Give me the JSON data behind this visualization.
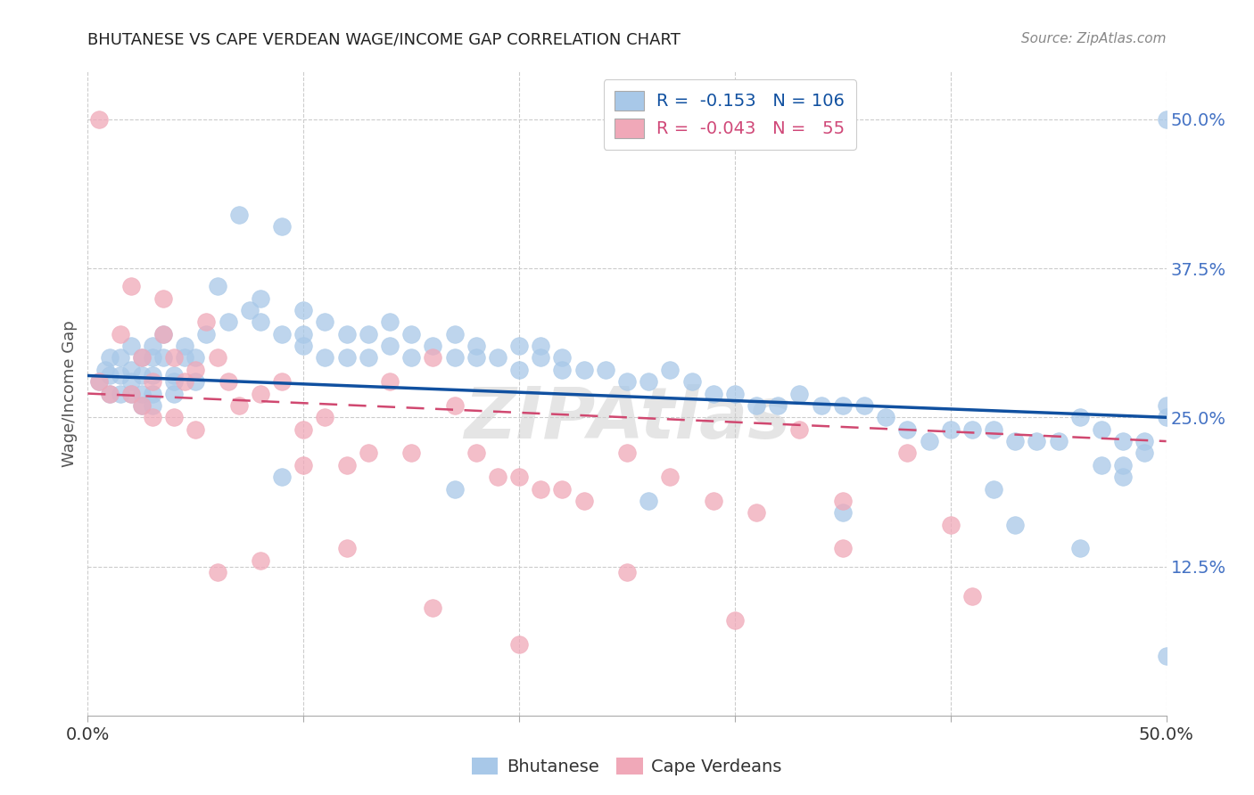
{
  "title": "BHUTANESE VS CAPE VERDEAN WAGE/INCOME GAP CORRELATION CHART",
  "source": "Source: ZipAtlas.com",
  "ylabel": "Wage/Income Gap",
  "xlim": [
    0.0,
    0.5
  ],
  "ylim": [
    0.0,
    0.54
  ],
  "ytick_vals": [
    0.125,
    0.25,
    0.375,
    0.5
  ],
  "ytick_labels": [
    "12.5%",
    "25.0%",
    "37.5%",
    "50.0%"
  ],
  "xtick_vals": [
    0.0,
    0.1,
    0.2,
    0.3,
    0.4,
    0.5
  ],
  "xtick_labels_show": [
    "0.0%",
    "",
    "",
    "",
    "",
    "50.0%"
  ],
  "blue_color": "#a8c8e8",
  "pink_color": "#f0a8b8",
  "line_blue": "#1050a0",
  "line_pink": "#d04870",
  "watermark": "ZIPAtlas",
  "bhu_line_start_y": 0.285,
  "bhu_line_end_y": 0.25,
  "cape_line_start_y": 0.27,
  "cape_line_end_y": 0.23,
  "bhutanese_x": [
    0.005,
    0.008,
    0.01,
    0.01,
    0.01,
    0.015,
    0.015,
    0.015,
    0.02,
    0.02,
    0.02,
    0.02,
    0.025,
    0.025,
    0.025,
    0.025,
    0.03,
    0.03,
    0.03,
    0.03,
    0.03,
    0.035,
    0.035,
    0.04,
    0.04,
    0.04,
    0.045,
    0.045,
    0.05,
    0.05,
    0.055,
    0.06,
    0.065,
    0.07,
    0.075,
    0.08,
    0.08,
    0.09,
    0.09,
    0.1,
    0.1,
    0.1,
    0.11,
    0.11,
    0.12,
    0.12,
    0.13,
    0.13,
    0.14,
    0.14,
    0.15,
    0.15,
    0.16,
    0.17,
    0.17,
    0.18,
    0.18,
    0.19,
    0.2,
    0.2,
    0.21,
    0.21,
    0.22,
    0.22,
    0.23,
    0.24,
    0.25,
    0.26,
    0.27,
    0.28,
    0.29,
    0.3,
    0.31,
    0.32,
    0.33,
    0.34,
    0.35,
    0.36,
    0.37,
    0.38,
    0.39,
    0.4,
    0.41,
    0.42,
    0.43,
    0.44,
    0.45,
    0.46,
    0.47,
    0.48,
    0.49,
    0.5,
    0.5,
    0.09,
    0.17,
    0.26,
    0.35,
    0.43,
    0.48,
    0.5,
    0.42,
    0.46,
    0.47,
    0.48,
    0.49,
    0.5
  ],
  "bhutanese_y": [
    0.28,
    0.29,
    0.3,
    0.285,
    0.27,
    0.3,
    0.27,
    0.285,
    0.29,
    0.31,
    0.28,
    0.27,
    0.3,
    0.285,
    0.27,
    0.26,
    0.31,
    0.3,
    0.285,
    0.27,
    0.26,
    0.32,
    0.3,
    0.285,
    0.28,
    0.27,
    0.31,
    0.3,
    0.3,
    0.28,
    0.32,
    0.36,
    0.33,
    0.42,
    0.34,
    0.35,
    0.33,
    0.41,
    0.32,
    0.34,
    0.32,
    0.31,
    0.33,
    0.3,
    0.32,
    0.3,
    0.32,
    0.3,
    0.33,
    0.31,
    0.32,
    0.3,
    0.31,
    0.32,
    0.3,
    0.31,
    0.3,
    0.3,
    0.31,
    0.29,
    0.31,
    0.3,
    0.3,
    0.29,
    0.29,
    0.29,
    0.28,
    0.28,
    0.29,
    0.28,
    0.27,
    0.27,
    0.26,
    0.26,
    0.27,
    0.26,
    0.26,
    0.26,
    0.25,
    0.24,
    0.23,
    0.24,
    0.24,
    0.24,
    0.23,
    0.23,
    0.23,
    0.25,
    0.24,
    0.23,
    0.23,
    0.25,
    0.26,
    0.2,
    0.19,
    0.18,
    0.17,
    0.16,
    0.2,
    0.05,
    0.19,
    0.14,
    0.21,
    0.21,
    0.22,
    0.5
  ],
  "capeverdean_x": [
    0.005,
    0.005,
    0.01,
    0.015,
    0.02,
    0.02,
    0.025,
    0.025,
    0.03,
    0.03,
    0.035,
    0.035,
    0.04,
    0.04,
    0.045,
    0.05,
    0.05,
    0.055,
    0.06,
    0.065,
    0.07,
    0.08,
    0.09,
    0.1,
    0.1,
    0.11,
    0.12,
    0.13,
    0.14,
    0.15,
    0.16,
    0.17,
    0.18,
    0.19,
    0.2,
    0.21,
    0.22,
    0.23,
    0.25,
    0.27,
    0.29,
    0.31,
    0.33,
    0.35,
    0.38,
    0.41,
    0.06,
    0.08,
    0.12,
    0.16,
    0.2,
    0.25,
    0.3,
    0.35,
    0.4
  ],
  "capeverdean_y": [
    0.28,
    0.5,
    0.27,
    0.32,
    0.36,
    0.27,
    0.3,
    0.26,
    0.28,
    0.25,
    0.35,
    0.32,
    0.3,
    0.25,
    0.28,
    0.29,
    0.24,
    0.33,
    0.3,
    0.28,
    0.26,
    0.27,
    0.28,
    0.24,
    0.21,
    0.25,
    0.21,
    0.22,
    0.28,
    0.22,
    0.3,
    0.26,
    0.22,
    0.2,
    0.2,
    0.19,
    0.19,
    0.18,
    0.22,
    0.2,
    0.18,
    0.17,
    0.24,
    0.18,
    0.22,
    0.1,
    0.12,
    0.13,
    0.14,
    0.09,
    0.06,
    0.12,
    0.08,
    0.14,
    0.16
  ]
}
